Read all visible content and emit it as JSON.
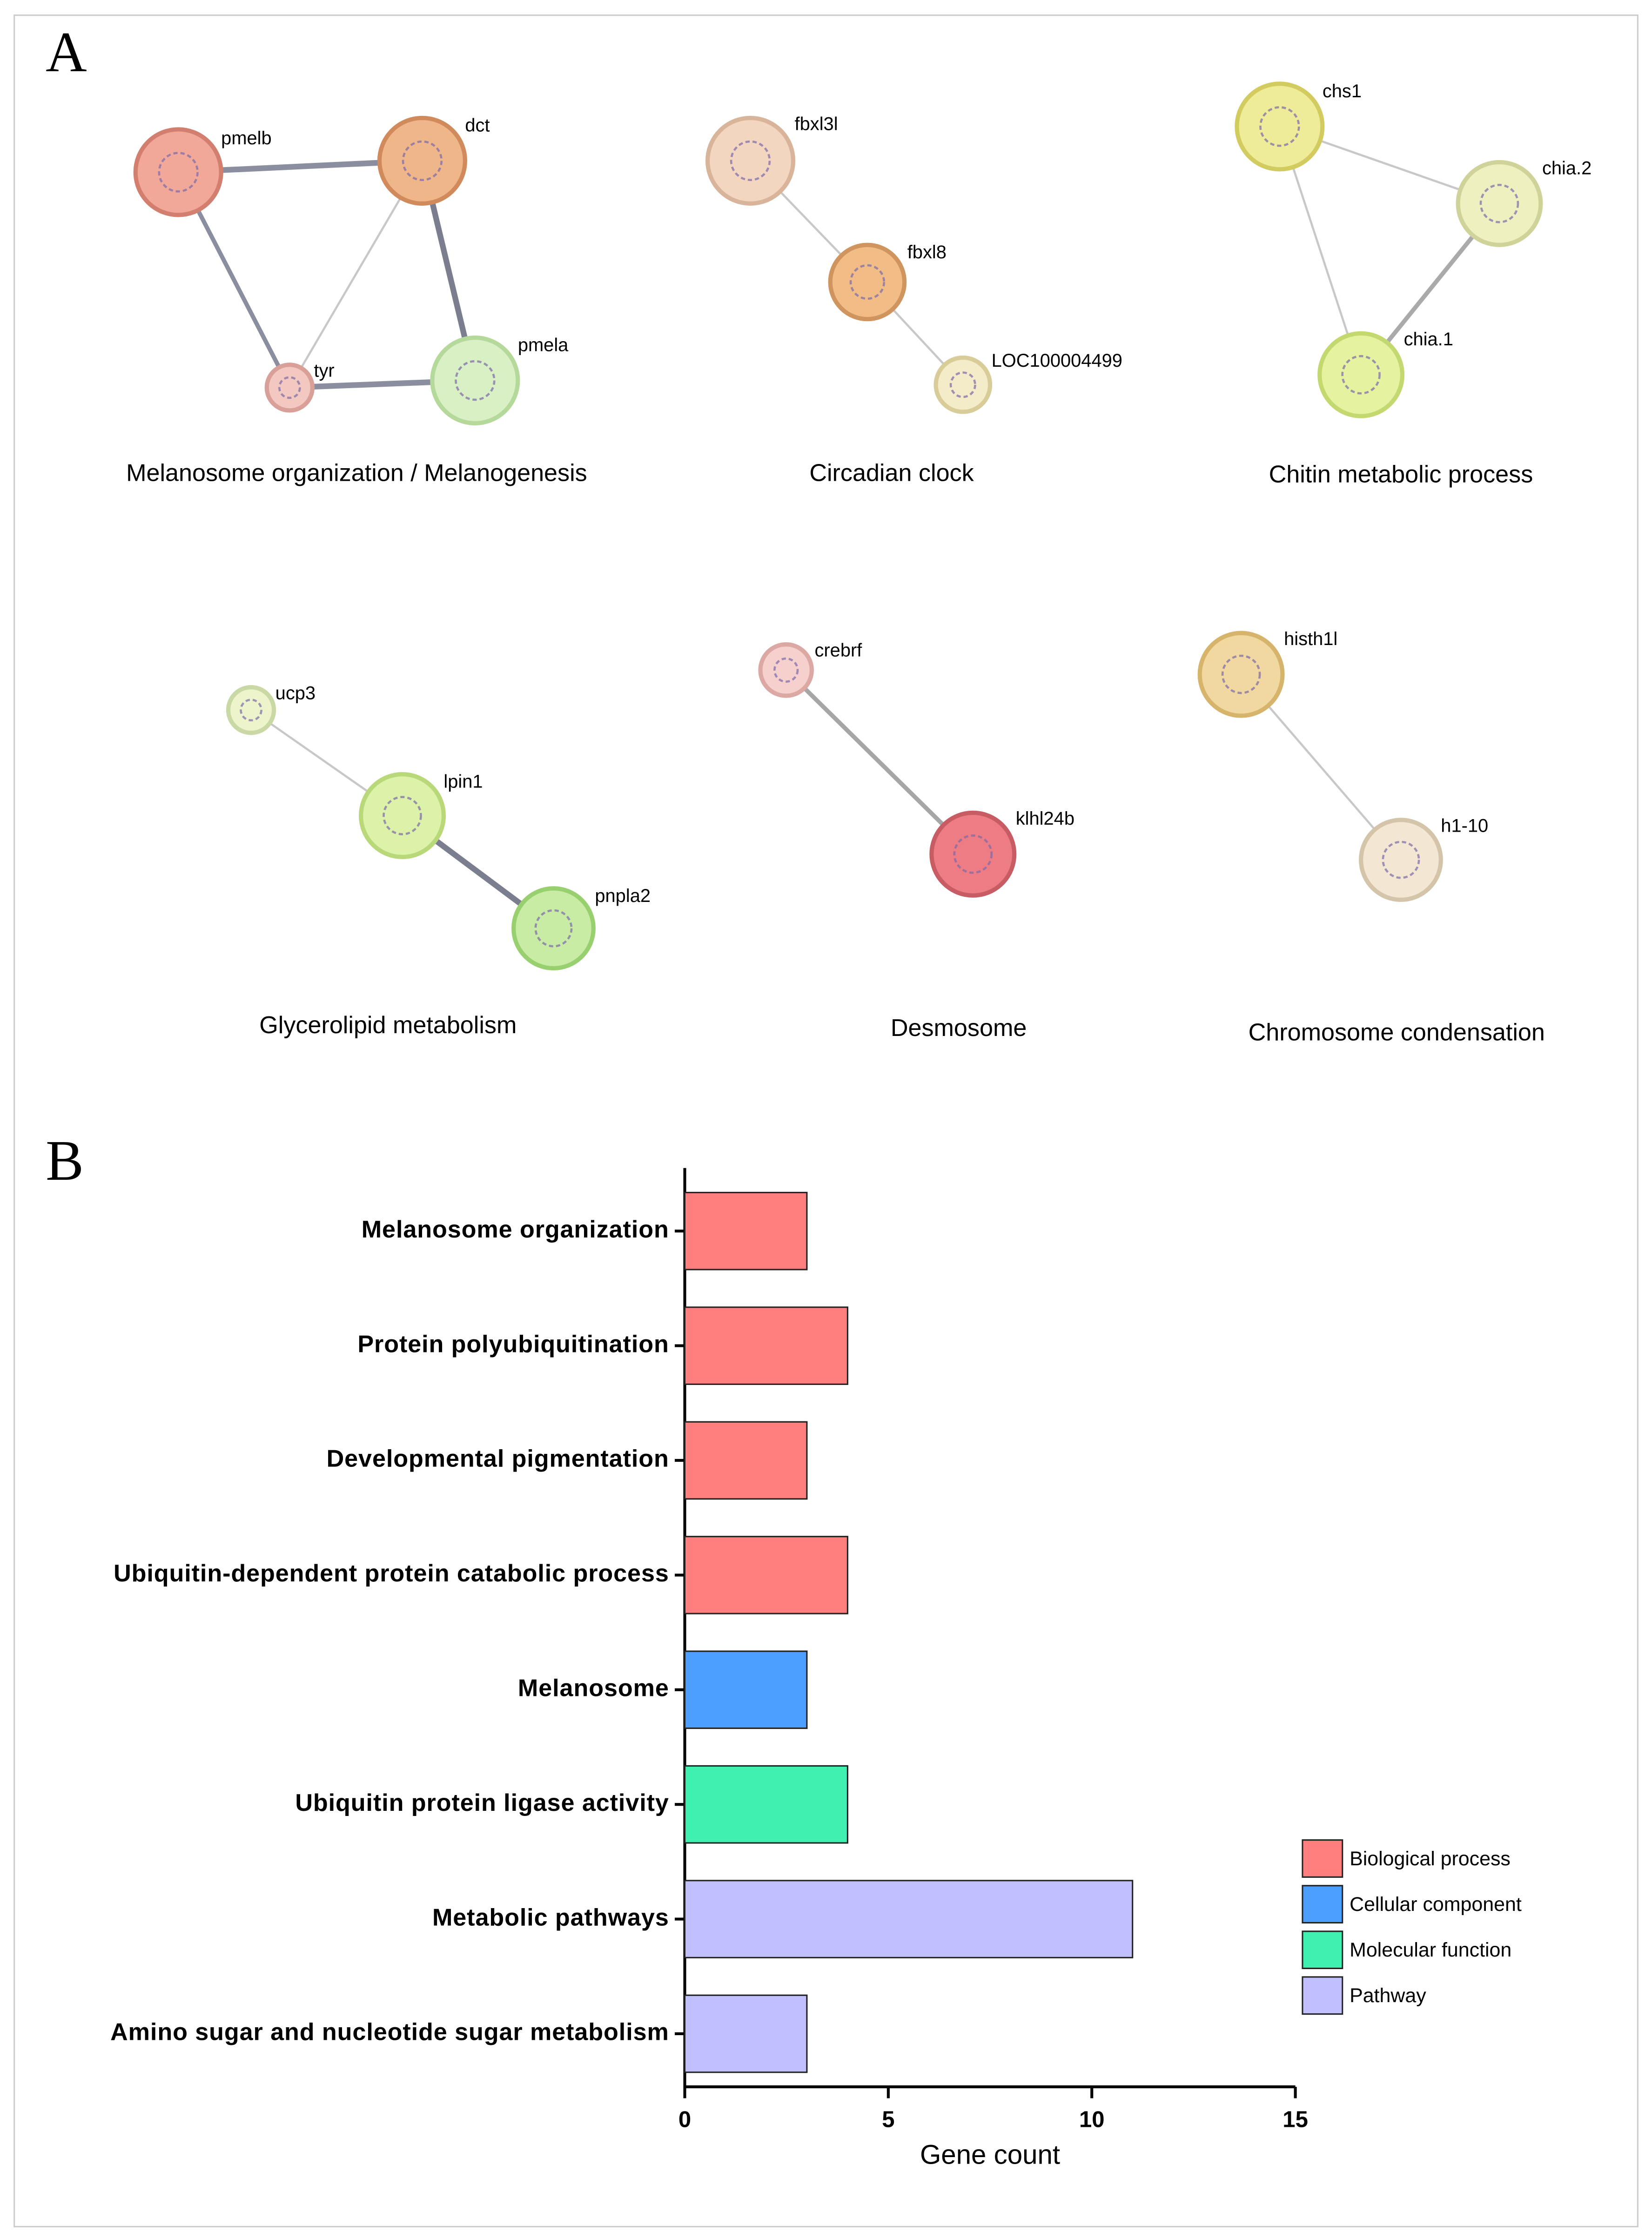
{
  "panel_a": {
    "label": "A",
    "networks": [
      {
        "caption": "Melanosome organization / Melanogenesis",
        "nodes": [
          "pmelb",
          "dct",
          "tyr",
          "pmela"
        ]
      },
      {
        "caption": "Circadian clock",
        "nodes": [
          "fbxl3l",
          "fbxl8",
          "LOC100004499"
        ]
      },
      {
        "caption": "Chitin metabolic process",
        "nodes": [
          "chs1",
          "chia.2",
          "chia.1"
        ]
      },
      {
        "caption": "Glycerolipid metabolism",
        "nodes": [
          "ucp3",
          "lpin1",
          "pnpla2"
        ]
      },
      {
        "caption": "Desmosome",
        "nodes": [
          "crebrf",
          "klhl24b"
        ]
      },
      {
        "caption": "Chromosome condensation",
        "nodes": [
          "histh1l",
          "h1-10"
        ]
      }
    ]
  },
  "panel_b": {
    "label": "B"
  },
  "chart_data": {
    "type": "bar",
    "orientation": "horizontal",
    "categories": [
      "Melanosome organization",
      "Protein polyubiquitination",
      "Developmental pigmentation",
      "Ubiquitin-dependent protein catabolic process",
      "Melanosome",
      "Ubiquitin protein ligase activity",
      "Metabolic pathways",
      "Amino sugar and nucleotide sugar metabolism"
    ],
    "series": [
      {
        "name": "Biological process",
        "color": "#ff7f7f",
        "values": [
          3,
          4,
          3,
          4,
          null,
          null,
          null,
          null
        ]
      },
      {
        "name": "Cellular component",
        "color": "#4d9fff",
        "values": [
          null,
          null,
          null,
          null,
          3,
          null,
          null,
          null
        ]
      },
      {
        "name": "Molecular function",
        "color": "#40f0b0",
        "values": [
          null,
          null,
          null,
          null,
          null,
          4,
          null,
          null
        ]
      },
      {
        "name": "Pathway",
        "color": "#c0c0ff",
        "values": [
          null,
          null,
          null,
          null,
          null,
          null,
          11,
          3
        ]
      }
    ],
    "xlabel": "Gene count",
    "xlim": [
      0,
      15
    ],
    "xticks": [
      0,
      5,
      10,
      15
    ],
    "legend": "lower right"
  }
}
